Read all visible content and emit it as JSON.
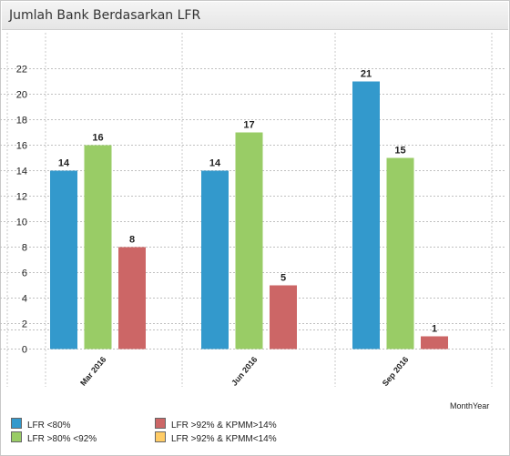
{
  "window": {
    "title": "Jumlah Bank Berdasarkan LFR"
  },
  "chart_data": {
    "type": "bar",
    "title": "Jumlah Bank Berdasarkan LFR",
    "xlabel": "MonthYear",
    "ylabel": "",
    "categories": [
      "Mar 2016",
      "Jun 2016",
      "Sep 2016"
    ],
    "series": [
      {
        "name": "LFR <80%",
        "color": "#3399cc",
        "values": [
          14,
          14,
          21
        ]
      },
      {
        "name": "LFR >80% <92%",
        "color": "#99cc66",
        "values": [
          16,
          17,
          15
        ]
      },
      {
        "name": "LFR >92% & KPMM>14%",
        "color": "#cc6666",
        "values": [
          8,
          5,
          1
        ]
      },
      {
        "name": "LFR >92% & KPMM<14%",
        "color": "#ffcc66",
        "values": [
          0,
          0,
          0
        ]
      }
    ],
    "ylim": [
      0,
      22
    ],
    "yticks": [
      0,
      2,
      4,
      6,
      8,
      10,
      12,
      14,
      16,
      18,
      20,
      22
    ],
    "grid": true,
    "legend_position": "bottom"
  }
}
